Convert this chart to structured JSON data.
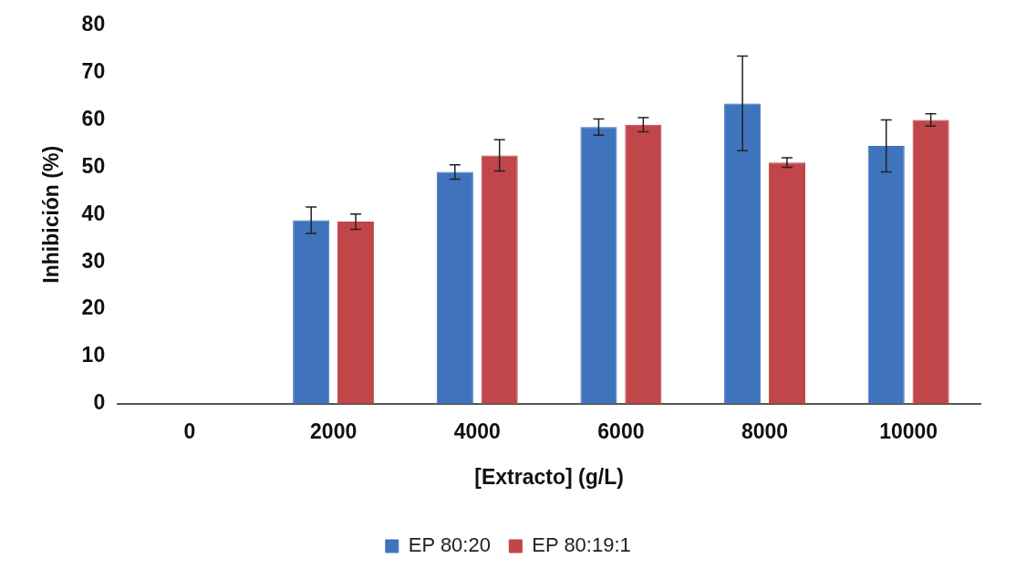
{
  "chart_data": {
    "type": "bar",
    "xlabel": "[Extracto] (g/L)",
    "ylabel": "Inhibición (%)",
    "categories": [
      "0",
      "2000",
      "4000",
      "6000",
      "8000",
      "10000"
    ],
    "series": [
      {
        "name": "EP 80:20",
        "color": "#3f74bd",
        "values": [
          0,
          38.8,
          49,
          58.5,
          63.5,
          54.5
        ],
        "errors": [
          null,
          2.8,
          1.5,
          1.7,
          10,
          5.5
        ]
      },
      {
        "name": "EP 80:19:1",
        "color": "#c0464a",
        "values": [
          0,
          38.5,
          52.5,
          59,
          51,
          60
        ],
        "errors": [
          null,
          1.6,
          3.3,
          1.5,
          1,
          1.3
        ]
      }
    ],
    "ylim": [
      0,
      80
    ],
    "yticks": [
      0,
      10,
      20,
      30,
      40,
      50,
      60,
      70,
      80
    ],
    "grid": false,
    "legend": "bottom"
  }
}
